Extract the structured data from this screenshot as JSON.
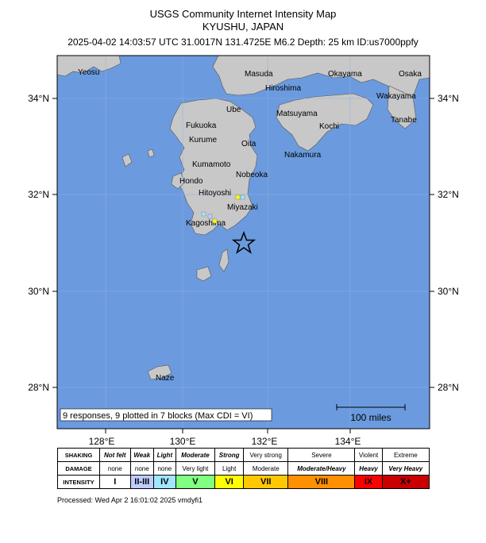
{
  "header": {
    "title": "USGS Community Internet Intensity Map",
    "region": "KYUSHU, JAPAN",
    "event": "2025-04-02 14:03:57 UTC 31.0017N 131.4725E M6.2 Depth: 25 km ID:us7000ppfy"
  },
  "map": {
    "lat_labels": [
      "34°N",
      "32°N",
      "30°N",
      "28°N"
    ],
    "lon_labels": [
      "128°E",
      "130°E",
      "132°E",
      "134°E"
    ],
    "cities": [
      "Yeosu",
      "Masuda",
      "Okayama",
      "Osaka",
      "Hiroshima",
      "Wakayama",
      "Ube",
      "Matsuyama",
      "Tanabe",
      "Fukuoka",
      "Kochi",
      "Kurume",
      "Oita",
      "Nakamura",
      "Kumamoto",
      "Nobeoka",
      "Hondo",
      "Hitoyoshi",
      "Miyazaki",
      "Kagoshima",
      "Naze"
    ],
    "responses_text": "9 responses, 9 plotted in 7 blocks (Max CDI = VI)",
    "scale_text": "100 miles",
    "epicenter": {
      "lat": 31.0017,
      "lon": 131.4725
    },
    "colors": {
      "water": "#6b9bde",
      "land": "#c8c8c8",
      "epicenter": "#000000"
    }
  },
  "legend": {
    "rows": [
      "SHAKING",
      "DAMAGE",
      "INTENSITY"
    ],
    "shaking": [
      "Not felt",
      "Weak",
      "Light",
      "Moderate",
      "Strong",
      "Very strong",
      "Severe",
      "Violent",
      "Extreme"
    ],
    "damage": [
      "none",
      "none",
      "none",
      "Very light",
      "Light",
      "Moderate",
      "Moderate/Heavy",
      "Heavy",
      "Very Heavy"
    ],
    "intensity": [
      "I",
      "II-III",
      "IV",
      "V",
      "VI",
      "VII",
      "VIII",
      "IX",
      "X+"
    ],
    "colors": [
      "#ffffff",
      "#bfccff",
      "#a0e6ff",
      "#80ff80",
      "#ffff00",
      "#ffc800",
      "#ff9100",
      "#ff0000",
      "#c80000"
    ]
  },
  "footer": {
    "processed": "Processed: Wed Apr  2 16:01:02 2025 vmdyfi1"
  }
}
